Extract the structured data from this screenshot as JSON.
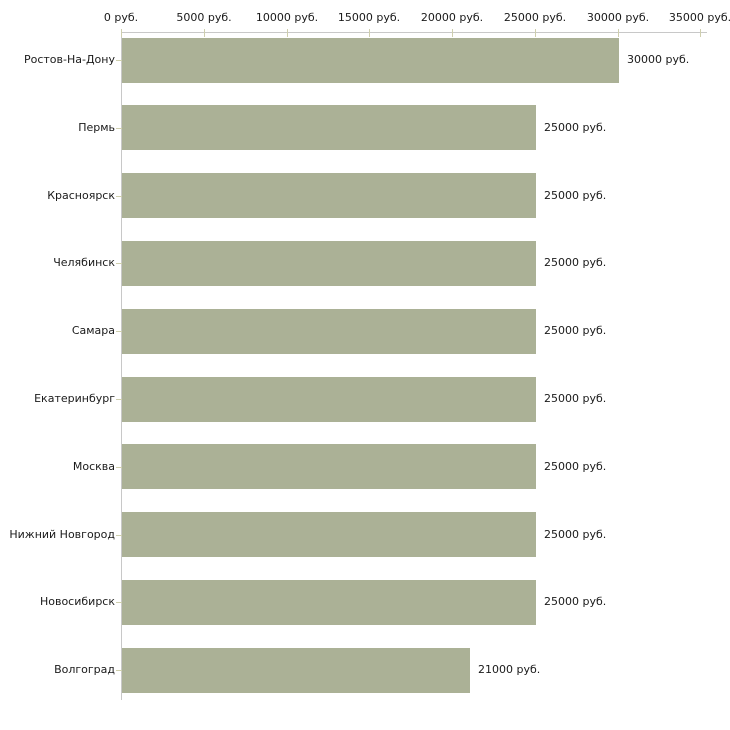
{
  "chart_data": {
    "type": "bar",
    "orientation": "horizontal",
    "title": "",
    "categories": [
      "Ростов-На-Дону",
      "Пермь",
      "Красноярск",
      "Челябинск",
      "Самара",
      "Екатеринбург",
      "Москва",
      "Нижний Новгород",
      "Новосибирск",
      "Волгоград"
    ],
    "values": [
      30000,
      25000,
      25000,
      25000,
      25000,
      25000,
      25000,
      25000,
      25000,
      21000
    ],
    "value_labels": [
      "30000 руб.",
      "25000 руб.",
      "25000 руб.",
      "25000 руб.",
      "25000 руб.",
      "25000 руб.",
      "25000 руб.",
      "25000 руб.",
      "25000 руб.",
      "21000 руб."
    ],
    "x_ticks": [
      {
        "value": 0,
        "label": "0 руб."
      },
      {
        "value": 5000,
        "label": "5000 руб."
      },
      {
        "value": 10000,
        "label": "10000 руб."
      },
      {
        "value": 15000,
        "label": "15000 руб."
      },
      {
        "value": 20000,
        "label": "20000 руб."
      },
      {
        "value": 25000,
        "label": "25000 руб."
      },
      {
        "value": 30000,
        "label": "30000 руб."
      },
      {
        "value": 35000,
        "label": "35000 руб."
      }
    ],
    "xlim": [
      0,
      35400
    ],
    "ylabel": "",
    "xlabel": "",
    "unit": "руб.",
    "grid": "off",
    "legend": "none",
    "colors": {
      "bar": "#abb196",
      "axis_line": "#c8c8c8",
      "tick_mark": "#cfcfae",
      "text": "#1a1a1a",
      "background": "#ffffff"
    }
  }
}
